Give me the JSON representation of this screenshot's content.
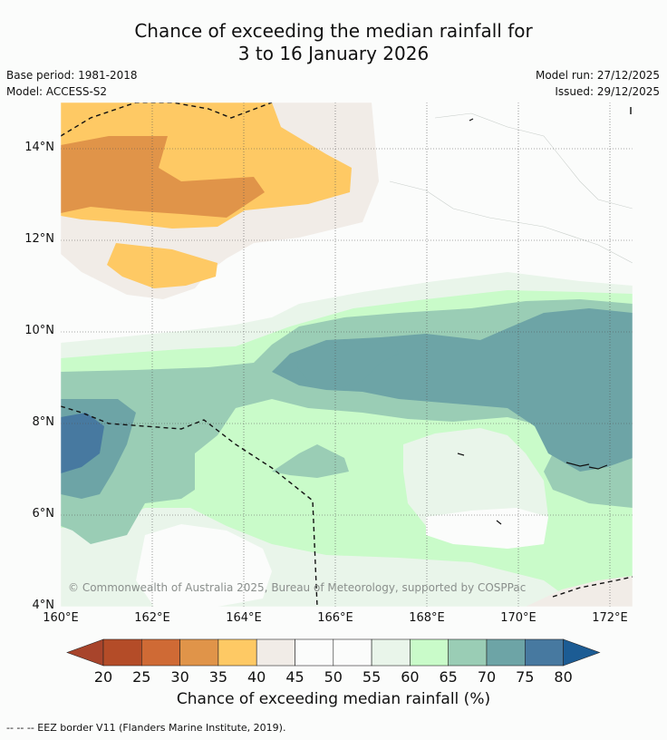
{
  "title": {
    "line1": "Chance of exceeding the median rainfall for",
    "line2": "3 to 16 January 2026"
  },
  "meta": {
    "base_period": "Base period: 1981-2018",
    "model": "Model: ACCESS-S2",
    "model_run": "Model run: 27/12/2025",
    "issued": "Issued: 29/12/2025"
  },
  "map": {
    "y_ticks": [
      "14°N",
      "12°N",
      "10°N",
      "8°N",
      "6°N",
      "4°N"
    ],
    "x_ticks": [
      "160°E",
      "162°E",
      "164°E",
      "166°E",
      "168°E",
      "170°E",
      "172°E"
    ],
    "copyright": "© Commonwealth of Australia 2025, Bureau of Meteorology, supported by COSPPac"
  },
  "colorbar": {
    "ticks": [
      "20",
      "25",
      "30",
      "35",
      "40",
      "45",
      "50",
      "55",
      "60",
      "65",
      "70",
      "75",
      "80"
    ],
    "colors": [
      "#a8442b",
      "#b44c28",
      "#cf6a35",
      "#e09449",
      "#fec964",
      "#f1ece7",
      "#fbfcfb",
      "#fbfcfb",
      "#e9f5ea",
      "#c9fbc9",
      "#9acdb5",
      "#6da4a6",
      "#4779a0",
      "#1c5c94"
    ],
    "title": "Chance of exceeding median rainfall (%)"
  },
  "footnote": "--  --  -- EEZ border V11 (Flanders Marine Institute, 2019)."
}
